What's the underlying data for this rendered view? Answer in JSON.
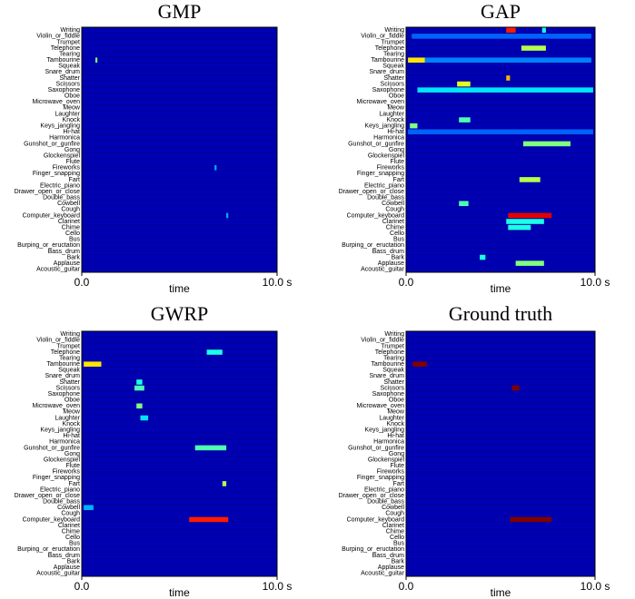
{
  "chart_data": [
    {
      "type": "heatmap",
      "title": "GMP",
      "xlabel": "time",
      "xlim": [
        0,
        10
      ],
      "xticks": [
        {
          "value": 0,
          "label": "0.0"
        },
        {
          "value": 10,
          "label": "10.0 s"
        }
      ],
      "base_value": 0.05,
      "categories": [
        "Writing",
        "Violin_or_fiddle",
        "Trumpet",
        "Telephone",
        "Tearing",
        "Tambourine",
        "Squeak",
        "Snare_drum",
        "Shatter",
        "Scissors",
        "Saxophone",
        "Oboe",
        "Microwave_oven",
        "Meow",
        "Laughter",
        "Knock",
        "Keys_jangling",
        "Hi-hat",
        "Harmonica",
        "Gunshot_or_gunfire",
        "Gong",
        "Glockenspiel",
        "Flute",
        "Fireworks",
        "Finger_snapping",
        "Fart",
        "Electric_piano",
        "Drawer_open_or_close",
        "Double_bass",
        "Cowbell",
        "Cough",
        "Computer_keyboard",
        "Clarinet",
        "Chime",
        "Cello",
        "Bus",
        "Burping_or_eructation",
        "Bass_drum",
        "Bark",
        "Applause",
        "Acoustic_guitar"
      ],
      "events": [
        {
          "row": 5,
          "start": 0.7,
          "end": 0.8,
          "value": 0.5
        },
        {
          "row": 23,
          "start": 6.8,
          "end": 6.9,
          "value": 0.3
        },
        {
          "row": 31,
          "start": 7.4,
          "end": 7.5,
          "value": 0.3
        }
      ]
    },
    {
      "type": "heatmap",
      "title": "GAP",
      "xlabel": "time",
      "xlim": [
        0,
        10
      ],
      "xticks": [
        {
          "value": 0,
          "label": "0.0"
        },
        {
          "value": 10,
          "label": "10.0 s"
        }
      ],
      "base_value": 0.05,
      "categories": [
        "Writing",
        "Violin_or_fiddle",
        "Trumpet",
        "Telephone",
        "Tearing",
        "Tambourine",
        "Squeak",
        "Snare_drum",
        "Shatter",
        "Scissors",
        "Saxophone",
        "Oboe",
        "Microwave_oven",
        "Meow",
        "Laughter",
        "Knock",
        "Keys_jangling",
        "Hi-hat",
        "Harmonica",
        "Gunshot_or_gunfire",
        "Gong",
        "Glockenspiel",
        "Flute",
        "Fireworks",
        "Finger_snapping",
        "Fart",
        "Electric_piano",
        "Drawer_open_or_close",
        "Double_bass",
        "Cowbell",
        "Cough",
        "Computer_keyboard",
        "Clarinet",
        "Chime",
        "Cello",
        "Bus",
        "Burping_or_eructation",
        "Bass_drum",
        "Bark",
        "Applause",
        "Acoustic_guitar"
      ],
      "events": [
        {
          "row": 0,
          "start": 5.3,
          "end": 5.8,
          "value": 0.85
        },
        {
          "row": 0,
          "start": 7.2,
          "end": 7.4,
          "value": 0.4
        },
        {
          "row": 1,
          "start": 0.3,
          "end": 9.8,
          "value": 0.22
        },
        {
          "row": 3,
          "start": 6.1,
          "end": 7.4,
          "value": 0.55
        },
        {
          "row": 5,
          "start": 0.1,
          "end": 1.0,
          "value": 0.65
        },
        {
          "row": 5,
          "start": 1.0,
          "end": 9.8,
          "value": 0.25
        },
        {
          "row": 8,
          "start": 5.3,
          "end": 5.5,
          "value": 0.7
        },
        {
          "row": 9,
          "start": 2.7,
          "end": 3.4,
          "value": 0.6
        },
        {
          "row": 10,
          "start": 0.6,
          "end": 9.9,
          "value": 0.35
        },
        {
          "row": 15,
          "start": 2.8,
          "end": 3.4,
          "value": 0.45
        },
        {
          "row": 16,
          "start": 0.2,
          "end": 0.6,
          "value": 0.5
        },
        {
          "row": 17,
          "start": 0.1,
          "end": 9.9,
          "value": 0.22
        },
        {
          "row": 19,
          "start": 6.2,
          "end": 8.7,
          "value": 0.5
        },
        {
          "row": 25,
          "start": 6.0,
          "end": 7.1,
          "value": 0.55
        },
        {
          "row": 29,
          "start": 2.8,
          "end": 3.3,
          "value": 0.45
        },
        {
          "row": 31,
          "start": 5.4,
          "end": 7.7,
          "value": 0.9
        },
        {
          "row": 32,
          "start": 5.3,
          "end": 7.3,
          "value": 0.4
        },
        {
          "row": 33,
          "start": 5.4,
          "end": 6.6,
          "value": 0.4
        },
        {
          "row": 38,
          "start": 3.9,
          "end": 4.2,
          "value": 0.4
        },
        {
          "row": 39,
          "start": 5.8,
          "end": 7.3,
          "value": 0.5
        }
      ]
    },
    {
      "type": "heatmap",
      "title": "GWRP",
      "xlabel": "time",
      "xlim": [
        0,
        10
      ],
      "xticks": [
        {
          "value": 0,
          "label": "0.0"
        },
        {
          "value": 10,
          "label": "10.0 s"
        }
      ],
      "base_value": 0.05,
      "categories": [
        "Writing",
        "Violin_or_fiddle",
        "Trumpet",
        "Telephone",
        "Tearing",
        "Tambourine",
        "Squeak",
        "Snare_drum",
        "Shatter",
        "Scissors",
        "Saxophone",
        "Oboe",
        "Microwave_oven",
        "Meow",
        "Laughter",
        "Knock",
        "Keys_jangling",
        "Hi-hat",
        "Harmonica",
        "Gunshot_or_gunfire",
        "Gong",
        "Glockenspiel",
        "Flute",
        "Fireworks",
        "Finger_snapping",
        "Fart",
        "Electric_piano",
        "Drawer_open_or_close",
        "Double_bass",
        "Cowbell",
        "Cough",
        "Computer_keyboard",
        "Clarinet",
        "Chime",
        "Cello",
        "Bus",
        "Burping_or_eructation",
        "Bass_drum",
        "Bark",
        "Applause",
        "Acoustic_guitar"
      ],
      "events": [
        {
          "row": 3,
          "start": 6.4,
          "end": 7.2,
          "value": 0.4
        },
        {
          "row": 5,
          "start": 0.1,
          "end": 1.0,
          "value": 0.65
        },
        {
          "row": 8,
          "start": 2.8,
          "end": 3.1,
          "value": 0.4
        },
        {
          "row": 9,
          "start": 2.7,
          "end": 3.2,
          "value": 0.45
        },
        {
          "row": 12,
          "start": 2.8,
          "end": 3.1,
          "value": 0.5
        },
        {
          "row": 14,
          "start": 3.0,
          "end": 3.4,
          "value": 0.35
        },
        {
          "row": 19,
          "start": 5.8,
          "end": 7.4,
          "value": 0.45
        },
        {
          "row": 25,
          "start": 7.2,
          "end": 7.4,
          "value": 0.55
        },
        {
          "row": 29,
          "start": 0.1,
          "end": 0.6,
          "value": 0.3
        },
        {
          "row": 31,
          "start": 5.5,
          "end": 7.5,
          "value": 0.85
        }
      ]
    },
    {
      "type": "heatmap",
      "title": "Ground truth",
      "xlabel": "time",
      "xlim": [
        0,
        10
      ],
      "xticks": [
        {
          "value": 0,
          "label": "0.0"
        },
        {
          "value": 10,
          "label": "10.0 s"
        }
      ],
      "base_value": 0.05,
      "categories": [
        "Writing",
        "Violin_or_fiddle",
        "Trumpet",
        "Telephone",
        "Tearing",
        "Tambourine",
        "Squeak",
        "Snare_drum",
        "Shatter",
        "Scissors",
        "Saxophone",
        "Oboe",
        "Microwave_oven",
        "Meow",
        "Laughter",
        "Knock",
        "Keys_jangling",
        "Hi-hat",
        "Harmonica",
        "Gunshot_or_gunfire",
        "Gong",
        "Glockenspiel",
        "Flute",
        "Fireworks",
        "Finger_snapping",
        "Fart",
        "Electric_piano",
        "Drawer_open_or_close",
        "Double_bass",
        "Cowbell",
        "Cough",
        "Computer_keyboard",
        "Clarinet",
        "Chime",
        "Cello",
        "Bus",
        "Burping_or_eructation",
        "Bass_drum",
        "Bark",
        "Applause",
        "Acoustic_guitar"
      ],
      "events": [
        {
          "row": 5,
          "start": 0.35,
          "end": 1.1,
          "value": 1
        },
        {
          "row": 9,
          "start": 5.6,
          "end": 6.0,
          "value": 1
        },
        {
          "row": 31,
          "start": 5.5,
          "end": 7.7,
          "value": 1
        }
      ]
    }
  ]
}
